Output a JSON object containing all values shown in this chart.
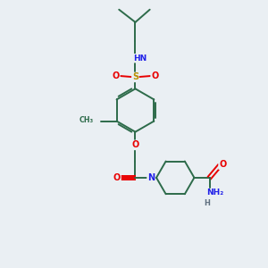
{
  "background_color": "#eaeff3",
  "bond_color": "#2d6b4a",
  "atom_colors": {
    "N": "#2020e8",
    "O": "#e80000",
    "S": "#b89000",
    "H": "#607080",
    "C": "#2d6b4a"
  },
  "figsize": [
    3.0,
    3.0
  ],
  "dpi": 100,
  "xlim": [
    0,
    10
  ],
  "ylim": [
    0,
    10
  ]
}
